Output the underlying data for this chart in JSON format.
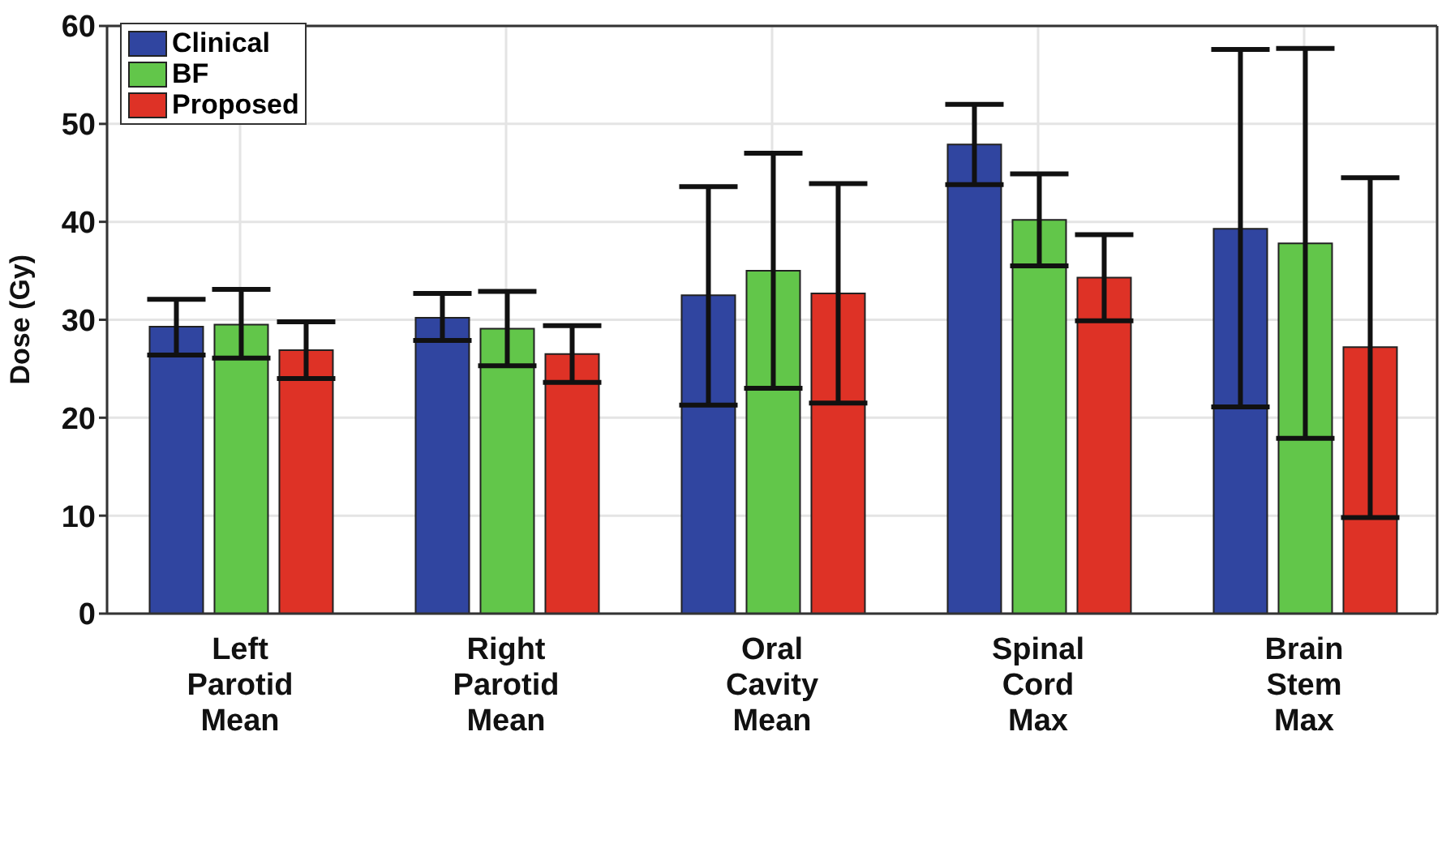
{
  "chart_data": {
    "type": "bar",
    "ylabel": "Dose (Gy)",
    "categories": [
      "Left\nParotid\nMean",
      "Right\nParotid\nMean",
      "Oral\nCavity\nMean",
      "Spinal\nCord\nMax",
      "Brain\nStem\nMax"
    ],
    "series": [
      {
        "name": "Clinical",
        "color": "#3045a0",
        "values": [
          29.3,
          30.2,
          32.5,
          47.9,
          39.3
        ],
        "errors": [
          [
            26.4,
            32.1
          ],
          [
            27.9,
            32.7
          ],
          [
            21.3,
            43.6
          ],
          [
            43.8,
            52.0
          ],
          [
            21.1,
            57.6
          ]
        ]
      },
      {
        "name": "BF",
        "color": "#62c64a",
        "values": [
          29.5,
          29.1,
          35.0,
          40.2,
          37.8
        ],
        "errors": [
          [
            26.1,
            33.1
          ],
          [
            25.3,
            32.9
          ],
          [
            23.0,
            47.0
          ],
          [
            35.5,
            44.9
          ],
          [
            17.9,
            57.7
          ]
        ]
      },
      {
        "name": "Proposed",
        "color": "#de3226",
        "values": [
          26.9,
          26.5,
          32.7,
          34.3,
          27.2
        ],
        "errors": [
          [
            24.0,
            29.8
          ],
          [
            23.6,
            29.4
          ],
          [
            21.5,
            43.9
          ],
          [
            29.9,
            38.7
          ],
          [
            9.8,
            44.5
          ]
        ]
      }
    ],
    "ylim": [
      0,
      60
    ],
    "yticks": [
      0,
      10,
      20,
      30,
      40,
      50,
      60
    ],
    "grid": true,
    "legend": "top left"
  }
}
